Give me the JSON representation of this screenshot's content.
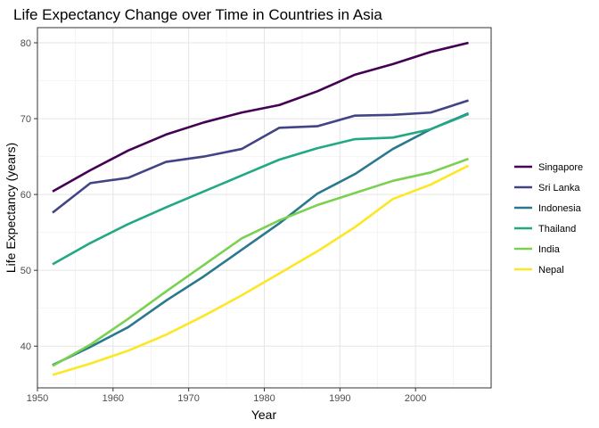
{
  "chart_data": {
    "type": "line",
    "title": "Life Expectancy Change over Time in Countries in Asia",
    "xlabel": "Year",
    "ylabel": "Life Expectancy (years)",
    "xlim": [
      1950,
      2010
    ],
    "ylim": [
      34.5,
      82
    ],
    "x_ticks": [
      1950,
      1960,
      1970,
      1980,
      1990,
      2000
    ],
    "y_ticks": [
      40,
      50,
      60,
      70,
      80
    ],
    "grid": true,
    "legend_position": "right",
    "x": [
      1952,
      1957,
      1962,
      1967,
      1972,
      1977,
      1982,
      1987,
      1992,
      1997,
      2002,
      2007
    ],
    "series": [
      {
        "name": "Singapore",
        "color": "#440154",
        "values": [
          60.4,
          63.2,
          65.8,
          67.9,
          69.5,
          70.8,
          71.8,
          73.6,
          75.8,
          77.2,
          78.8,
          80.0
        ]
      },
      {
        "name": "Sri Lanka",
        "color": "#414487",
        "values": [
          57.6,
          61.5,
          62.2,
          64.3,
          65.0,
          66.0,
          68.8,
          69.0,
          70.4,
          70.5,
          70.8,
          72.4
        ]
      },
      {
        "name": "Indonesia",
        "color": "#2A788E",
        "values": [
          37.5,
          39.9,
          42.5,
          46.0,
          49.2,
          52.7,
          56.2,
          60.1,
          62.7,
          66.0,
          68.6,
          70.7
        ]
      },
      {
        "name": "Thailand",
        "color": "#22A884",
        "values": [
          50.8,
          53.6,
          56.1,
          58.3,
          60.4,
          62.5,
          64.6,
          66.1,
          67.3,
          67.5,
          68.6,
          70.6
        ]
      },
      {
        "name": "India",
        "color": "#7AD151",
        "values": [
          37.4,
          40.2,
          43.6,
          47.2,
          50.7,
          54.2,
          56.6,
          58.6,
          60.2,
          61.8,
          62.9,
          64.7
        ]
      },
      {
        "name": "Nepal",
        "color": "#FDE725",
        "values": [
          36.2,
          37.7,
          39.4,
          41.5,
          44.0,
          46.7,
          49.6,
          52.5,
          55.7,
          59.4,
          61.3,
          63.8
        ]
      }
    ]
  }
}
